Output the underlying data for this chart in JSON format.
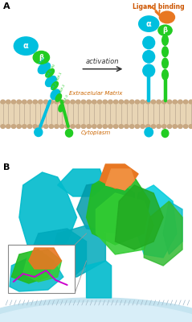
{
  "panel_A_label": "A",
  "panel_B_label": "B",
  "ligand_binding_text": "Ligand binding",
  "activation_text": "activation",
  "extracellular_matrix_text": "Extracelular Matrix",
  "cytoplasm_text": "Cytoplasm",
  "alpha_label": "α",
  "beta_label": "β",
  "cyan_color": "#00BFDF",
  "green_color": "#22CC22",
  "orange_color": "#E87722",
  "membrane_head_color": "#C8A882",
  "membrane_fill_color": "#E8D5B5",
  "text_orange": "#CC6600",
  "background": "#FFFFFF",
  "fig_width": 2.39,
  "fig_height": 4.0,
  "dpi": 100
}
